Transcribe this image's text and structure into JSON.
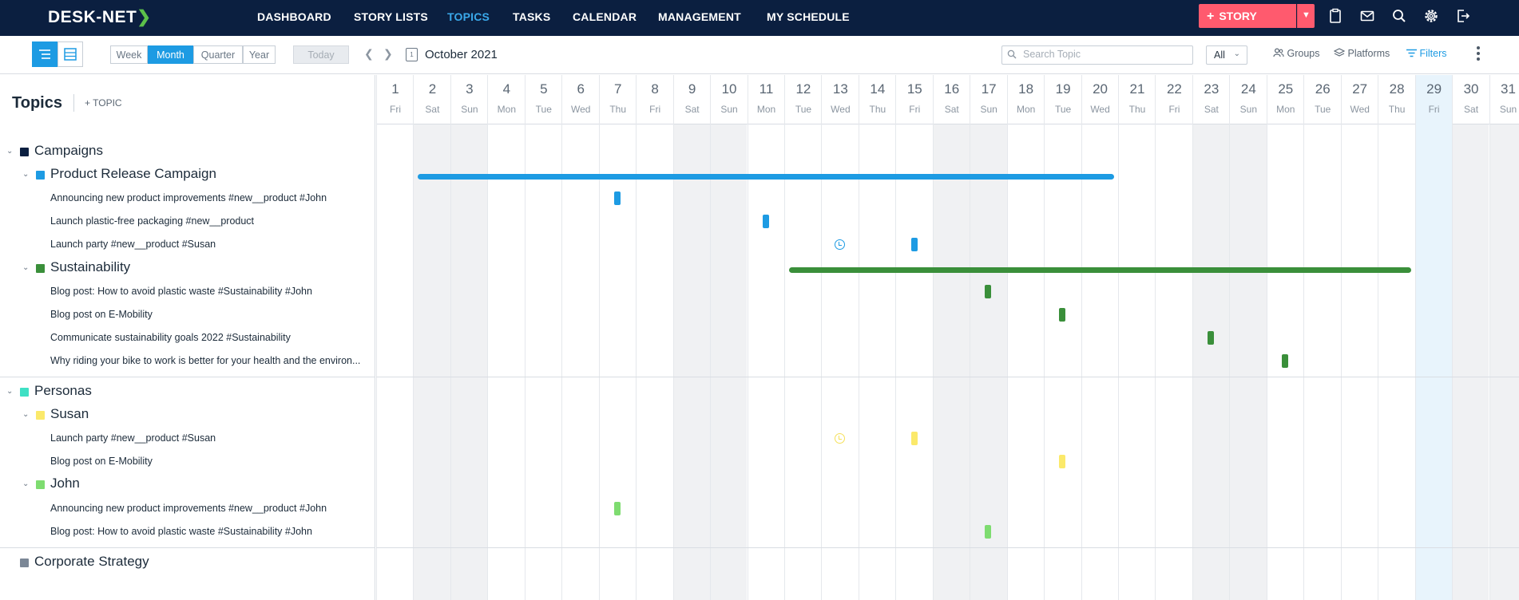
{
  "app": {
    "logo": "DESK-NET",
    "nav": [
      "DASHBOARD",
      "STORY LISTS",
      "TOPICS",
      "TASKS",
      "CALENDAR",
      "MANAGEMENT",
      "MY SCHEDULE"
    ],
    "active_nav": "TOPICS",
    "story_button": "STORY",
    "accent": "#1d9be3",
    "brand_bg": "#0b1f40",
    "story_color": "#ff5a6e"
  },
  "toolbar": {
    "ranges": [
      "Week",
      "Month",
      "Quarter",
      "Year"
    ],
    "active_range": "Month",
    "today": "Today",
    "month": "October 2021",
    "search_placeholder": "Search Topic",
    "filter_select": "All",
    "groups": "Groups",
    "platforms": "Platforms",
    "filters": "Filters"
  },
  "left": {
    "title": "Topics",
    "add_topic": "+ TOPIC"
  },
  "tree": [
    {
      "level": 1,
      "label": "Campaigns",
      "color": "#0b1f40"
    },
    {
      "level": 2,
      "label": "Product Release Campaign",
      "color": "#1d9be3"
    },
    {
      "level": 3,
      "label": "Announcing new product improvements #new__product #John"
    },
    {
      "level": 3,
      "label": "Launch plastic-free packaging #new__product"
    },
    {
      "level": 3,
      "label": "Launch party #new__product #Susan"
    },
    {
      "level": 2,
      "label": "Sustainability",
      "color": "#3a8f3a"
    },
    {
      "level": 3,
      "label": "Blog post: How to avoid plastic waste #Sustainability #John"
    },
    {
      "level": 3,
      "label": "Blog post on E-Mobility"
    },
    {
      "level": 3,
      "label": "Communicate sustainability goals 2022 #Sustainability"
    },
    {
      "level": 3,
      "label": "Why riding your bike to work is better for your health and the environ..."
    },
    {
      "level": 1,
      "label": "Personas",
      "color": "#3ee0c4"
    },
    {
      "level": 2,
      "label": "Susan",
      "color": "#fbe96a"
    },
    {
      "level": 3,
      "label": "Launch party #new__product #Susan"
    },
    {
      "level": 3,
      "label": "Blog post on E-Mobility"
    },
    {
      "level": 2,
      "label": "John",
      "color": "#7edc70"
    },
    {
      "level": 3,
      "label": "Announcing new product improvements #new__product #John"
    },
    {
      "level": 3,
      "label": "Blog post: How to avoid plastic waste #Sustainability #John"
    },
    {
      "level": 1,
      "label": "Corporate Strategy",
      "color": "#7b8796"
    }
  ],
  "calendar": {
    "days": [
      {
        "num": "1",
        "name": "Fri"
      },
      {
        "num": "2",
        "name": "Sat"
      },
      {
        "num": "3",
        "name": "Sun"
      },
      {
        "num": "4",
        "name": "Mon"
      },
      {
        "num": "5",
        "name": "Tue"
      },
      {
        "num": "6",
        "name": "Wed"
      },
      {
        "num": "7",
        "name": "Thu"
      },
      {
        "num": "8",
        "name": "Fri"
      },
      {
        "num": "9",
        "name": "Sat"
      },
      {
        "num": "10",
        "name": "Sun"
      },
      {
        "num": "11",
        "name": "Mon"
      },
      {
        "num": "12",
        "name": "Tue"
      },
      {
        "num": "13",
        "name": "Wed"
      },
      {
        "num": "14",
        "name": "Thu"
      },
      {
        "num": "15",
        "name": "Fri"
      },
      {
        "num": "16",
        "name": "Sat"
      },
      {
        "num": "17",
        "name": "Sun"
      },
      {
        "num": "18",
        "name": "Mon"
      },
      {
        "num": "19",
        "name": "Tue"
      },
      {
        "num": "20",
        "name": "Wed"
      },
      {
        "num": "21",
        "name": "Thu"
      },
      {
        "num": "22",
        "name": "Fri"
      },
      {
        "num": "23",
        "name": "Sat"
      },
      {
        "num": "24",
        "name": "Sun"
      },
      {
        "num": "25",
        "name": "Mon"
      },
      {
        "num": "26",
        "name": "Tue"
      },
      {
        "num": "27",
        "name": "Wed"
      },
      {
        "num": "28",
        "name": "Thu"
      },
      {
        "num": "29",
        "name": "Fri"
      },
      {
        "num": "30",
        "name": "Sat"
      },
      {
        "num": "31",
        "name": "Sun"
      }
    ],
    "today": "29",
    "spans": [
      {
        "row": 1,
        "start": 2,
        "end": 20,
        "color": "#1d9be3"
      },
      {
        "row": 5,
        "start": 12,
        "end": 28,
        "color": "#3a8f3a"
      }
    ],
    "items": [
      {
        "row": 2,
        "day": 7,
        "kind": "pill",
        "color": "#1d9be3"
      },
      {
        "row": 3,
        "day": 11,
        "kind": "pill",
        "color": "#1d9be3"
      },
      {
        "row": 4,
        "day": 13,
        "kind": "clock",
        "color": "#1d9be3"
      },
      {
        "row": 4,
        "day": 15,
        "kind": "pill",
        "color": "#1d9be3"
      },
      {
        "row": 6,
        "day": 17,
        "kind": "pill",
        "color": "#3a8f3a"
      },
      {
        "row": 7,
        "day": 19,
        "kind": "pill",
        "color": "#3a8f3a"
      },
      {
        "row": 8,
        "day": 23,
        "kind": "pill",
        "color": "#3a8f3a"
      },
      {
        "row": 9,
        "day": 25,
        "kind": "pill",
        "color": "#3a8f3a"
      },
      {
        "row": 12,
        "day": 13,
        "kind": "ring",
        "color": "#f5e05a"
      },
      {
        "row": 12,
        "day": 15,
        "kind": "pill",
        "color": "#fbe96a"
      },
      {
        "row": 13,
        "day": 19,
        "kind": "pill",
        "color": "#fbe96a"
      },
      {
        "row": 15,
        "day": 7,
        "kind": "pill",
        "color": "#7edc70"
      },
      {
        "row": 16,
        "day": 17,
        "kind": "pill",
        "color": "#7edc70"
      }
    ]
  }
}
